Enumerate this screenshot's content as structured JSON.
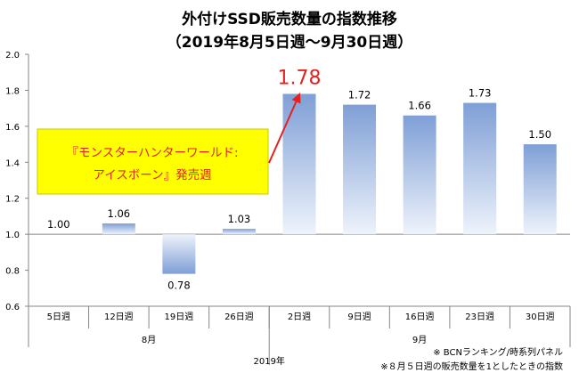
{
  "chart_data": {
    "type": "bar",
    "title": "外付けSSD販売数量の指数推移",
    "subtitle": "（2019年8月5日週〜9月30日週）",
    "categories": [
      "5日週",
      "12日週",
      "19日週",
      "26日週",
      "2日週",
      "9日週",
      "16日週",
      "23日週",
      "30日週"
    ],
    "values": [
      1.0,
      1.06,
      0.78,
      1.03,
      1.78,
      1.72,
      1.66,
      1.73,
      1.5
    ],
    "value_labels": [
      "1.00",
      "1.06",
      "0.78",
      "1.03",
      "1.78",
      "1.72",
      "1.66",
      "1.73",
      "1.50"
    ],
    "highlight_index": 4,
    "baseline": 1.0,
    "ylim": [
      0.6,
      2.0
    ],
    "yticks": [
      "0.6",
      "0.8",
      "1.0",
      "1.2",
      "1.4",
      "1.6",
      "1.8",
      "2.0"
    ],
    "month_groups": [
      {
        "label": "8月",
        "start": 0,
        "end": 3
      },
      {
        "label": "9月",
        "start": 4,
        "end": 8
      }
    ],
    "year_label": "2019年",
    "annotation": {
      "line1": "『モンスターハンターワールド:",
      "line2": "アイスボーン』発売週",
      "box_color": "#ffff00",
      "text_color": "#e32222"
    },
    "notes": [
      "※ BCNランキング/時系列パネル",
      "※８月５日週の販売数量を1としたときの指数"
    ],
    "colors": {
      "bar_top": "#7f9fd6",
      "bar_bottom": "#eef3fb",
      "highlight": "#e32222",
      "grid": "#bfbfbf"
    },
    "grid": false
  }
}
